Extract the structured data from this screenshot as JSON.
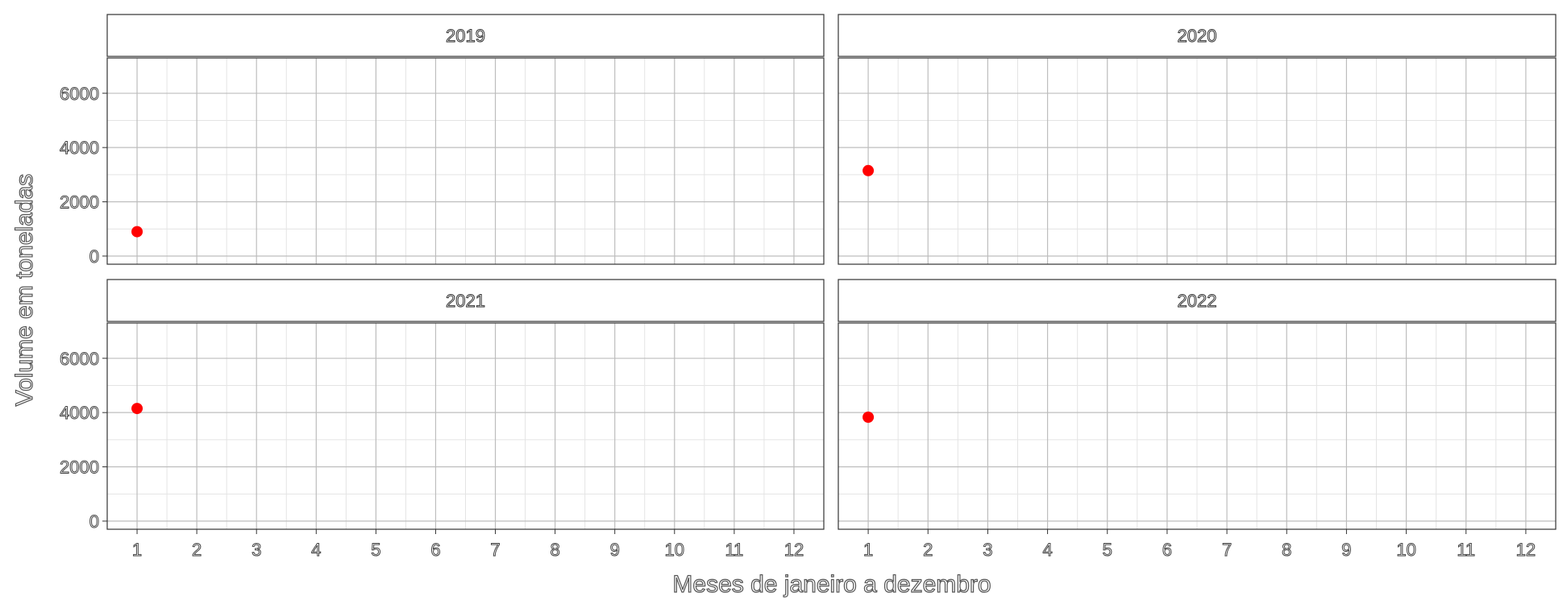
{
  "chart_data": {
    "type": "scatter",
    "xlabel": "Meses de janeiro a dezembro",
    "ylabel": "Volume em toneladas",
    "x_ticks": [
      1,
      2,
      3,
      4,
      5,
      6,
      7,
      8,
      9,
      10,
      11,
      12
    ],
    "y_ticks": [
      0,
      2000,
      4000,
      6000
    ],
    "xlim": [
      0.5,
      12.5
    ],
    "ylim": [
      -300,
      7300
    ],
    "grid": true,
    "point_color": "#ff0000",
    "panels": [
      {
        "title": "2019",
        "points": [
          {
            "x": 1,
            "y": 900
          }
        ]
      },
      {
        "title": "2020",
        "points": [
          {
            "x": 1,
            "y": 3150
          }
        ]
      },
      {
        "title": "2021",
        "points": [
          {
            "x": 1,
            "y": 4150
          }
        ]
      },
      {
        "title": "2022",
        "points": [
          {
            "x": 1,
            "y": 3830
          }
        ]
      }
    ]
  }
}
